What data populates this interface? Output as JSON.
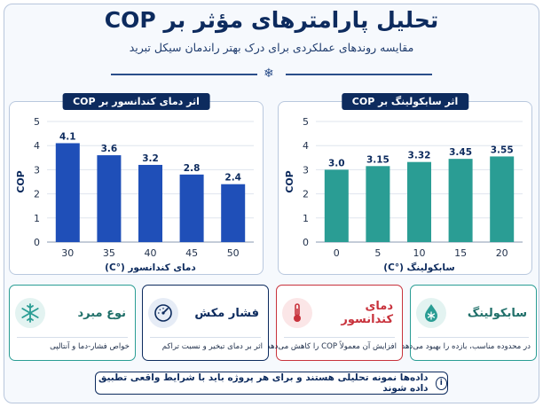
{
  "header": {
    "title": "تحلیل پارامترهای مؤثر بر COP",
    "subtitle": "مقایسه روندهای عملکردی برای درک بهتر راندمان سیکل تبرید"
  },
  "chart_data": [
    {
      "type": "bar",
      "title": "اثر دمای کندانسور بر COP",
      "categories": [
        "30",
        "35",
        "40",
        "45",
        "50"
      ],
      "values": [
        4.1,
        3.6,
        3.2,
        2.8,
        2.4
      ],
      "value_labels": [
        "4.1",
        "3.6",
        "3.2",
        "2.8",
        "2.4"
      ],
      "xlabel": "دمای کندانسور (°C)",
      "ylabel": "COP",
      "ylim": [
        0,
        5
      ],
      "yticks": [
        "0",
        "1",
        "2",
        "3",
        "4",
        "5"
      ],
      "grid": true,
      "color": "#1f4fb8"
    },
    {
      "type": "bar",
      "title": "اثر سابکولینگ بر COP",
      "categories": [
        "0",
        "5",
        "10",
        "15",
        "20"
      ],
      "values": [
        3.0,
        3.15,
        3.32,
        3.45,
        3.55
      ],
      "value_labels": [
        "3.0",
        "3.15",
        "3.32",
        "3.45",
        "3.55"
      ],
      "xlabel": "سابکولینگ (°C)",
      "ylabel": "COP",
      "ylim": [
        0,
        5
      ],
      "yticks": [
        "0",
        "1",
        "2",
        "3",
        "4",
        "5"
      ],
      "grid": true,
      "color": "#2a9d94"
    }
  ],
  "cards": [
    {
      "title": "سابکولینگ",
      "desc": "در محدوده مناسب، بازده را بهبود می‌دهد",
      "icon": "water-drop-snow-icon",
      "color": "#2a9d94",
      "bg": "#e3f3f1"
    },
    {
      "title": "دمای کندانسور",
      "desc": "افزایش آن معمولاً COP را کاهش می‌دهد",
      "icon": "thermometer-icon",
      "color": "#c8323c",
      "bg": "#fbe6e7"
    },
    {
      "title": "فشار مکش",
      "desc": "اثر بر دمای تبخیر و نسبت تراکم",
      "icon": "gauge-icon",
      "color": "#0d2b5e",
      "bg": "#e6ecf6"
    },
    {
      "title": "نوع مبرد",
      "desc": "خواص فشار-دما و آنتالپی",
      "icon": "snowflake-icon",
      "color": "#2a9d94",
      "bg": "#e3f3f1"
    }
  ],
  "note": {
    "text": "داده‌ها نمونه تحلیلی هستند و برای هر پروژه باید با شرایط واقعی تطبیق داده شوند",
    "icon_glyph": "i"
  }
}
